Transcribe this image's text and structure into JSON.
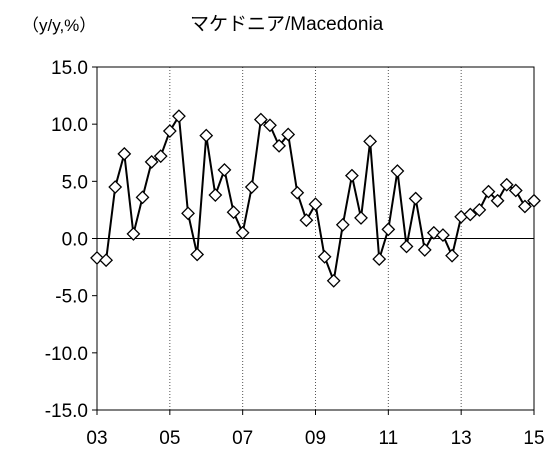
{
  "chart_data": {
    "type": "line",
    "title": "マケドニア/Macedonia",
    "ylabel": "（y/y,%）",
    "xlabel": "",
    "ylim": [
      -15.0,
      15.0
    ],
    "yticks": [
      15.0,
      10.0,
      5.0,
      0.0,
      -5.0,
      -10.0,
      -15.0
    ],
    "ytick_labels": [
      "15.0",
      "10.0",
      "5.0",
      "0.0",
      "-5.0",
      "-10.0",
      "-15.0"
    ],
    "xlim": [
      2003.0,
      2015.0
    ],
    "xticks": [
      2003,
      2005,
      2007,
      2009,
      2011,
      2013,
      2015
    ],
    "xtick_labels": [
      "03",
      "05",
      "07",
      "09",
      "11",
      "13",
      "15"
    ],
    "grid": "vertical dotted lines at odd years",
    "marker": "diamond",
    "colors": {
      "line": "#000000",
      "marker_fill": "#ffffff",
      "marker_edge": "#000000",
      "grid": "#555555"
    },
    "series": [
      {
        "x": [
          2003.0,
          2003.25,
          2003.5,
          2003.75,
          2004.0,
          2004.25,
          2004.5,
          2004.75,
          2005.0,
          2005.25,
          2005.5,
          2005.75,
          2006.0,
          2006.25,
          2006.5,
          2006.75,
          2007.0,
          2007.25,
          2007.5,
          2007.75,
          2008.0,
          2008.25,
          2008.5,
          2008.75,
          2009.0,
          2009.25,
          2009.5,
          2009.75,
          2010.0,
          2010.25,
          2010.5,
          2010.75,
          2011.0,
          2011.25,
          2011.5,
          2011.75,
          2012.0,
          2012.25,
          2012.5,
          2012.75,
          2013.0,
          2013.25,
          2013.5,
          2013.75,
          2014.0,
          2014.25,
          2014.5,
          2014.75,
          2015.0
        ],
        "values": [
          -1.7,
          -1.9,
          4.5,
          7.4,
          0.4,
          3.6,
          6.7,
          7.2,
          9.4,
          10.7,
          2.2,
          -1.4,
          9.0,
          3.8,
          6.0,
          2.3,
          0.5,
          4.5,
          10.4,
          9.9,
          8.1,
          9.1,
          4.0,
          1.6,
          3.0,
          -1.6,
          -3.7,
          1.2,
          5.5,
          1.8,
          8.5,
          -1.8,
          0.8,
          5.9,
          -0.7,
          3.5,
          -1.0,
          0.5,
          0.3,
          -1.5,
          1.9,
          2.1,
          2.5,
          4.1,
          3.3,
          4.7,
          4.2,
          2.8,
          3.3
        ]
      }
    ]
  }
}
